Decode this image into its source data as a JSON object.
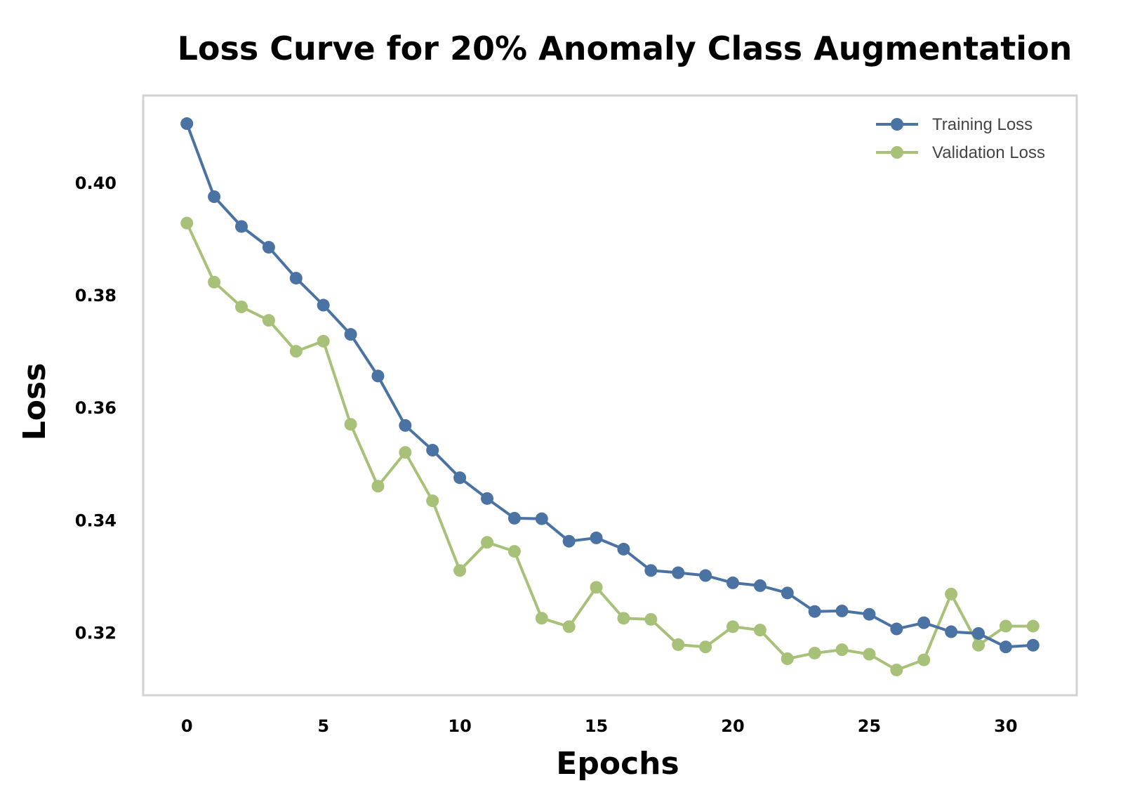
{
  "chart_data": {
    "type": "line",
    "title": "Loss Curve for 20% Anomaly Class Augmentation",
    "xlabel": "Epochs",
    "ylabel": "Loss",
    "xlim": [
      -1.6,
      32.6
    ],
    "ylim": [
      0.3088,
      0.4155
    ],
    "xticks": [
      0,
      5,
      10,
      15,
      20,
      25,
      30
    ],
    "yticks": [
      0.32,
      0.34,
      0.36,
      0.38,
      0.4
    ],
    "ytick_labels": [
      "0.32",
      "0.34",
      "0.36",
      "0.38",
      "0.40"
    ],
    "xtick_labels": [
      "0",
      "5",
      "10",
      "15",
      "20",
      "25",
      "30"
    ],
    "grid": false,
    "legend_position": "top-right",
    "x": [
      0,
      1,
      2,
      3,
      4,
      5,
      6,
      7,
      8,
      9,
      10,
      11,
      12,
      13,
      14,
      15,
      16,
      17,
      18,
      19,
      20,
      21,
      22,
      23,
      24,
      25,
      26,
      27,
      28,
      29,
      30,
      31
    ],
    "series": [
      {
        "name": "Training Loss",
        "color": "#4a72a3",
        "values": [
          0.4105,
          0.3975,
          0.3922,
          0.3885,
          0.383,
          0.3782,
          0.373,
          0.3656,
          0.3568,
          0.3524,
          0.3475,
          0.3438,
          0.3403,
          0.3402,
          0.3362,
          0.3368,
          0.3348,
          0.331,
          0.3306,
          0.3301,
          0.3288,
          0.3283,
          0.327,
          0.3237,
          0.3238,
          0.3232,
          0.3206,
          0.3217,
          0.3201,
          0.3198,
          0.3174,
          0.3177
        ]
      },
      {
        "name": "Validation Loss",
        "color": "#a8c178",
        "values": [
          0.3928,
          0.3823,
          0.3779,
          0.3755,
          0.37,
          0.3718,
          0.357,
          0.346,
          0.352,
          0.3434,
          0.331,
          0.336,
          0.3344,
          0.3225,
          0.321,
          0.328,
          0.3225,
          0.3223,
          0.3178,
          0.3174,
          0.321,
          0.3204,
          0.3153,
          0.3163,
          0.3169,
          0.3161,
          0.3133,
          0.3151,
          0.3268,
          0.3177,
          0.3211,
          0.3211
        ]
      }
    ]
  }
}
